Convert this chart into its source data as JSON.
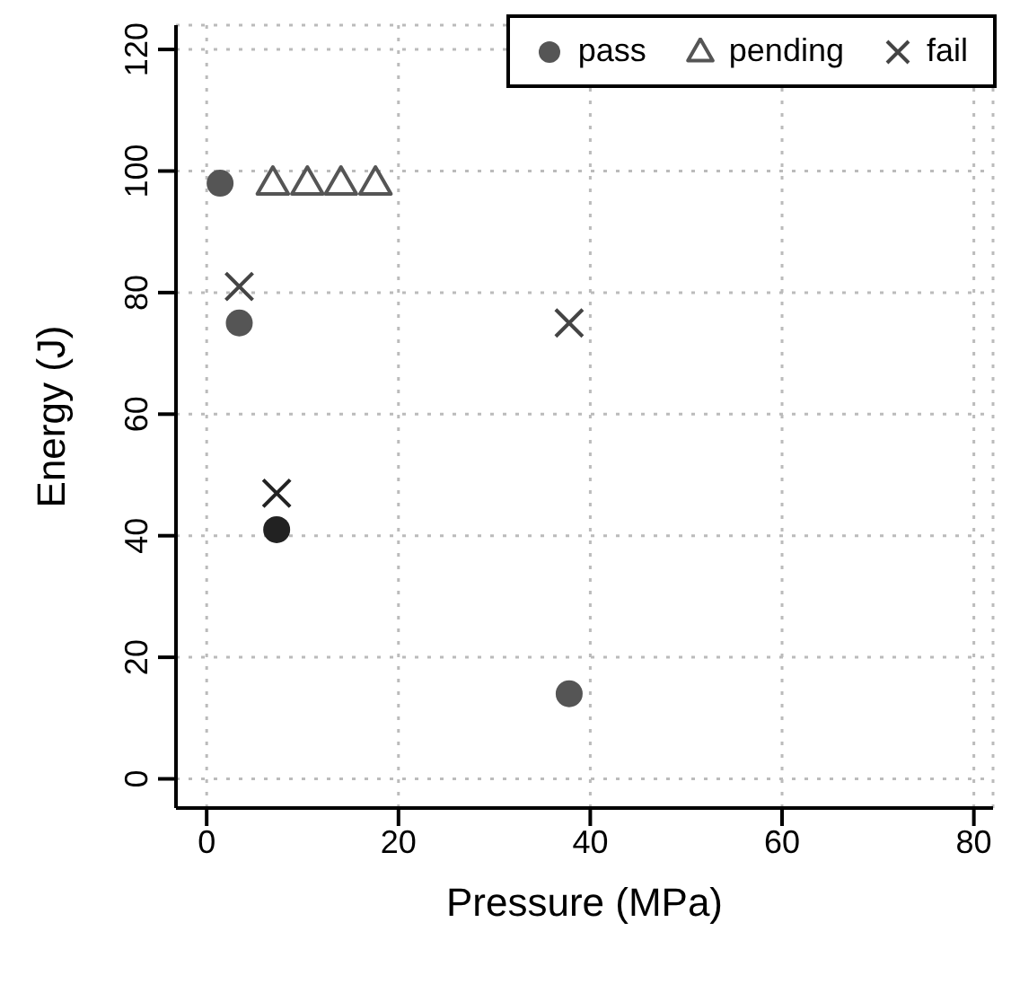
{
  "chart_data": {
    "type": "scatter",
    "xlabel": "Pressure (MPa)",
    "ylabel": "Energy (J)",
    "xlim": [
      -3.2,
      82
    ],
    "ylim": [
      -4.8,
      124
    ],
    "xticks": [
      0,
      20,
      40,
      60,
      80
    ],
    "yticks": [
      0,
      20,
      40,
      60,
      80,
      100,
      120
    ],
    "grid": true,
    "legend": "top right",
    "series": [
      {
        "name": "pass",
        "marker": "circle",
        "color": "#555555",
        "colors": [
          "#555555",
          "#555555",
          "#222222",
          "#555555"
        ],
        "x": [
          1.4,
          3.4,
          7.3,
          37.8
        ],
        "values": [
          98,
          75,
          41,
          14
        ]
      },
      {
        "name": "pending",
        "marker": "triangle",
        "color": "#555555",
        "x": [
          6.9,
          10.5,
          14,
          17.6
        ],
        "values": [
          98,
          98,
          98,
          98
        ]
      },
      {
        "name": "fail",
        "marker": "cross",
        "color": "#444444",
        "colors": [
          "#444444",
          "#222222",
          "#444444"
        ],
        "x": [
          3.4,
          7.3,
          37.8
        ],
        "values": [
          81,
          47,
          75
        ]
      }
    ]
  }
}
